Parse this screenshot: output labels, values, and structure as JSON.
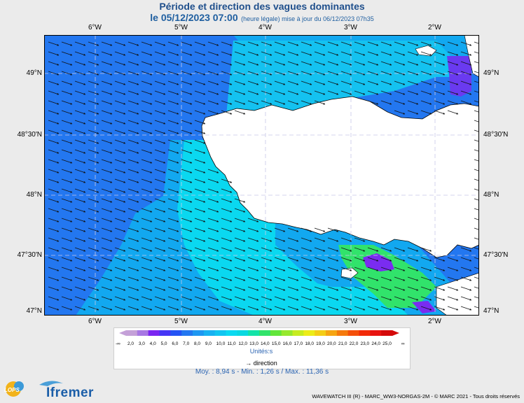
{
  "title": "Période et direction des vagues dominantes",
  "subtitle": {
    "date": "le 05/12/2023 07:00",
    "detail": "(heure légale) mise à jour du 06/12/2023 07h35"
  },
  "map": {
    "lon_labels": [
      "6°W",
      "5°W",
      "4°W",
      "3°W",
      "2°W"
    ],
    "lat_labels": [
      "49°N",
      "48°30'N",
      "48°N",
      "47°30'N",
      "47°N"
    ],
    "land_color": "#ffffff",
    "sea_colors": {
      "offshore": "#2377f0",
      "mid": "#12a8f0",
      "coastal": "#0ad8f0",
      "north_coast": "#14c2f0",
      "green": "#31e36b",
      "violet": "#7a2cf0"
    },
    "arrow_direction": "east-southeast"
  },
  "legend": {
    "values": [
      "2,0",
      "3,0",
      "4,0",
      "5,0",
      "6,0",
      "7,0",
      "8,0",
      "9,0",
      "10,0",
      "11,0",
      "12,0",
      "13,0",
      "14,0",
      "15,0",
      "16,0",
      "17,0",
      "18,0",
      "19,0",
      "20,0",
      "21,0",
      "22,0",
      "23,0",
      "24,0",
      "25,0"
    ],
    "colors": [
      "#c4a0d8",
      "#a777e3",
      "#7a25f1",
      "#4535f5",
      "#2453f4",
      "#2377f0",
      "#1e97f1",
      "#18b1f1",
      "#12c5f0",
      "#0bd9f0",
      "#0ad8e0",
      "#13e3a8",
      "#31e36b",
      "#62e63a",
      "#96e92e",
      "#c6ec20",
      "#ecec18",
      "#f4cd16",
      "#f6a512",
      "#f57a0d",
      "#f4500a",
      "#f22a08",
      "#e81410",
      "#d40a0a"
    ],
    "low_symbol": "-∞",
    "high_symbol": "∞",
    "units": "Unités:s",
    "direction_label": "direction"
  },
  "stats": "Moy. : 8,94 s   -   Min. : 1,26 s / Max. : 11,36 s",
  "credits": "WAVEWATCH III (R) - MARC_WW3-NORGAS-2M - © MARC 2021 - Tous droits réservés",
  "logos": {
    "lops": "LOPS",
    "ifremer": "Ifremer"
  }
}
